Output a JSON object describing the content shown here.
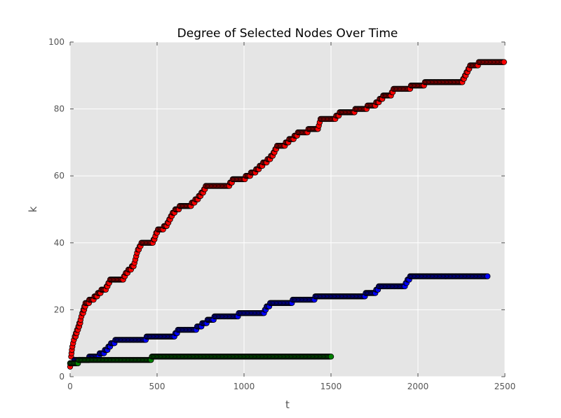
{
  "chart_data": {
    "type": "scatter",
    "title": "Degree of Selected Nodes Over Time",
    "xlabel": "t",
    "ylabel": "k",
    "xlim": [
      0,
      2500
    ],
    "ylim": [
      0,
      100
    ],
    "xticks": [
      "0",
      "500",
      "1000",
      "1500",
      "2000",
      "2500"
    ],
    "yticks": [
      "0",
      "20",
      "40",
      "60",
      "80",
      "100"
    ],
    "grid": true,
    "background": "#e5e5e5",
    "series": [
      {
        "color": "#ff0000",
        "edge": "#000000",
        "steps": [
          [
            0,
            3
          ],
          [
            3,
            4
          ],
          [
            6,
            6
          ],
          [
            8,
            7
          ],
          [
            10,
            8
          ],
          [
            13,
            9
          ],
          [
            17,
            10
          ],
          [
            22,
            11
          ],
          [
            27,
            12
          ],
          [
            33,
            13
          ],
          [
            40,
            14
          ],
          [
            47,
            15
          ],
          [
            53,
            16
          ],
          [
            60,
            17
          ],
          [
            65,
            18
          ],
          [
            70,
            19
          ],
          [
            76,
            20
          ],
          [
            82,
            21
          ],
          [
            88,
            22
          ],
          [
            110,
            23
          ],
          [
            140,
            24
          ],
          [
            160,
            25
          ],
          [
            180,
            26
          ],
          [
            210,
            27
          ],
          [
            220,
            28
          ],
          [
            230,
            29
          ],
          [
            310,
            30
          ],
          [
            320,
            31
          ],
          [
            335,
            32
          ],
          [
            355,
            33
          ],
          [
            370,
            34
          ],
          [
            375,
            35
          ],
          [
            380,
            36
          ],
          [
            385,
            37
          ],
          [
            390,
            38
          ],
          [
            400,
            39
          ],
          [
            410,
            40
          ],
          [
            480,
            41
          ],
          [
            490,
            42
          ],
          [
            495,
            43
          ],
          [
            505,
            44
          ],
          [
            540,
            45
          ],
          [
            560,
            46
          ],
          [
            570,
            47
          ],
          [
            580,
            48
          ],
          [
            590,
            49
          ],
          [
            605,
            50
          ],
          [
            630,
            51
          ],
          [
            700,
            52
          ],
          [
            720,
            53
          ],
          [
            740,
            54
          ],
          [
            755,
            55
          ],
          [
            770,
            56
          ],
          [
            780,
            57
          ],
          [
            920,
            58
          ],
          [
            935,
            59
          ],
          [
            1010,
            60
          ],
          [
            1040,
            61
          ],
          [
            1070,
            62
          ],
          [
            1090,
            63
          ],
          [
            1110,
            64
          ],
          [
            1135,
            65
          ],
          [
            1155,
            66
          ],
          [
            1170,
            67
          ],
          [
            1180,
            68
          ],
          [
            1190,
            69
          ],
          [
            1240,
            70
          ],
          [
            1260,
            71
          ],
          [
            1290,
            72
          ],
          [
            1310,
            73
          ],
          [
            1370,
            74
          ],
          [
            1430,
            75
          ],
          [
            1435,
            76
          ],
          [
            1440,
            77
          ],
          [
            1530,
            78
          ],
          [
            1550,
            79
          ],
          [
            1640,
            80
          ],
          [
            1710,
            81
          ],
          [
            1760,
            82
          ],
          [
            1780,
            83
          ],
          [
            1800,
            84
          ],
          [
            1850,
            85
          ],
          [
            1860,
            86
          ],
          [
            1960,
            87
          ],
          [
            2040,
            88
          ],
          [
            2260,
            89
          ],
          [
            2270,
            90
          ],
          [
            2280,
            91
          ],
          [
            2290,
            92
          ],
          [
            2300,
            93
          ],
          [
            2350,
            94
          ],
          [
            2495,
            94
          ]
        ]
      },
      {
        "color": "#0000ff",
        "edge": "#000000",
        "steps": [
          [
            0,
            4
          ],
          [
            25,
            5
          ],
          [
            110,
            6
          ],
          [
            170,
            7
          ],
          [
            200,
            8
          ],
          [
            220,
            9
          ],
          [
            235,
            10
          ],
          [
            260,
            11
          ],
          [
            440,
            12
          ],
          [
            605,
            13
          ],
          [
            620,
            14
          ],
          [
            730,
            15
          ],
          [
            760,
            16
          ],
          [
            790,
            17
          ],
          [
            830,
            18
          ],
          [
            970,
            19
          ],
          [
            1120,
            20
          ],
          [
            1130,
            21
          ],
          [
            1150,
            22
          ],
          [
            1280,
            23
          ],
          [
            1410,
            24
          ],
          [
            1700,
            25
          ],
          [
            1760,
            26
          ],
          [
            1775,
            27
          ],
          [
            1930,
            28
          ],
          [
            1940,
            29
          ],
          [
            1955,
            30
          ],
          [
            2400,
            30
          ]
        ]
      },
      {
        "color": "#008000",
        "edge": "#000000",
        "steps": [
          [
            0,
            4
          ],
          [
            50,
            5
          ],
          [
            470,
            6
          ],
          [
            1500,
            6
          ]
        ]
      }
    ]
  }
}
